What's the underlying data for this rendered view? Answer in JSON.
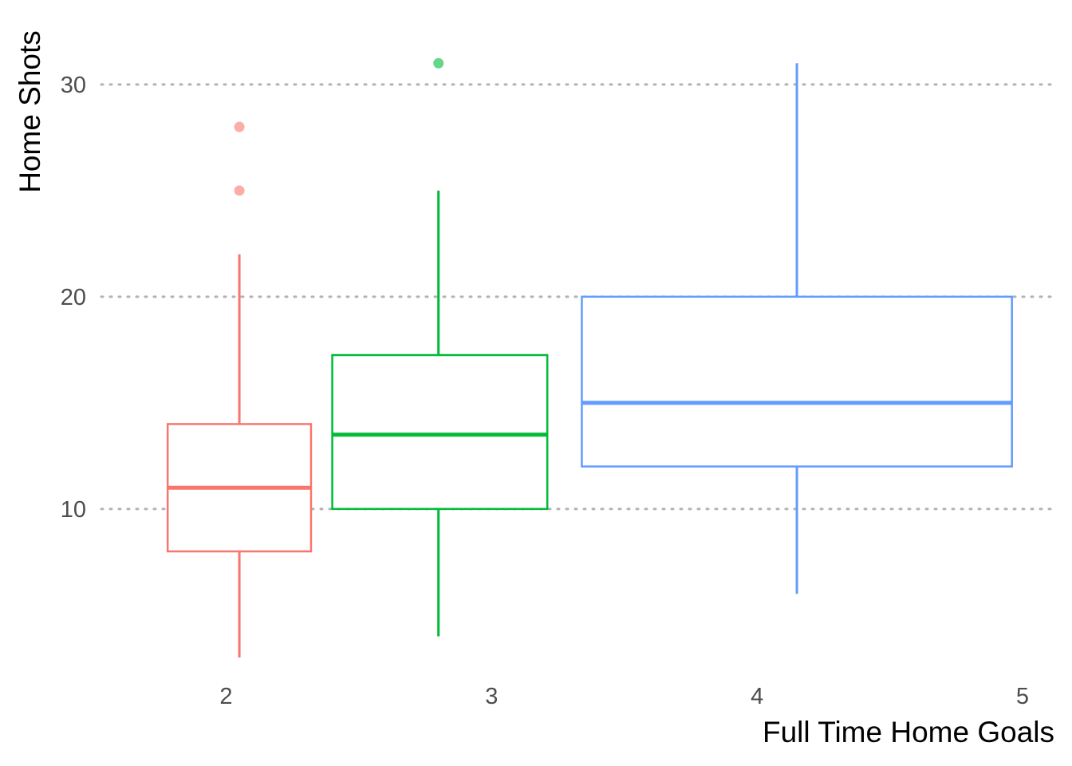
{
  "chart_data": {
    "type": "boxplot",
    "title": "",
    "xlabel": "Full Time Home Goals",
    "ylabel": "Home Shots",
    "x_ticks": [
      "2",
      "3",
      "4",
      "5"
    ],
    "x_range": [
      1.53,
      5.0
    ],
    "y_ticks": [
      10,
      20,
      30
    ],
    "ylim": [
      2.4,
      32.4
    ],
    "grid": "horizontal dotted",
    "legend": "none",
    "boxes": [
      {
        "group": "2",
        "color": "#F8766D",
        "x_from": 1.78,
        "x_to": 2.32,
        "whisker_x": 2.05,
        "whisker_low": 3,
        "q1": 8,
        "median": 11,
        "q3": 14,
        "whisker_high": 22,
        "outliers": [
          25,
          28
        ]
      },
      {
        "group": "3",
        "color": "#00BA38",
        "x_from": 2.4,
        "x_to": 3.21,
        "whisker_x": 2.8,
        "whisker_low": 4,
        "q1": 10,
        "median": 13.5,
        "q3": 17.25,
        "whisker_high": 25,
        "outliers": [
          31
        ]
      },
      {
        "group": "4",
        "color": "#619CFF",
        "x_from": 3.34,
        "x_to": 4.96,
        "whisker_x": 4.15,
        "whisker_low": 6,
        "q1": 12,
        "median": 15,
        "q3": 20,
        "whisker_high": 31,
        "outliers": []
      }
    ]
  }
}
